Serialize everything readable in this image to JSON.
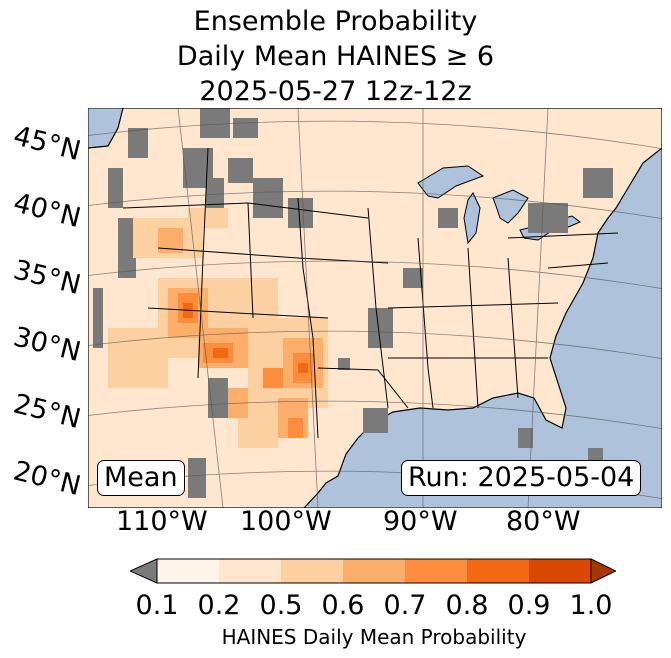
{
  "title": {
    "line1": "Ensemble Probability",
    "line2": "Daily Mean HAINES ≥ 6",
    "line3": "2025-05-27 12z-12z"
  },
  "map": {
    "ocean_color": "#aec2dc",
    "land_base_color": "#fee6cf",
    "no_data_color": "#7a7a7a",
    "lat_labels": [
      "45°N",
      "40°N",
      "35°N",
      "30°N",
      "25°N",
      "20°N"
    ],
    "lon_labels": [
      "110°W",
      "100°W",
      "90°W",
      "80°W"
    ]
  },
  "stat_label": "Mean",
  "run_label": "Run: 2025-05-04",
  "colorbar": {
    "ticks": [
      "0.1",
      "0.2",
      "0.5",
      "0.6",
      "0.7",
      "0.8",
      "0.9",
      "1.0"
    ],
    "colors": [
      "#fff5eb",
      "#fee6ce",
      "#fdd0a2",
      "#fdae6b",
      "#fd8d3c",
      "#f16913",
      "#d94801"
    ],
    "under_color": "#7a7a7a",
    "over_color": "#a63603",
    "label": "HAINES Daily Mean Probability"
  }
}
